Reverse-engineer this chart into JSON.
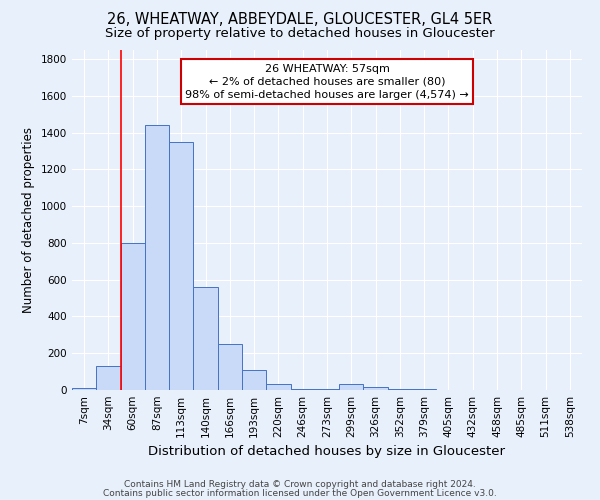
{
  "title1": "26, WHEATWAY, ABBEYDALE, GLOUCESTER, GL4 5ER",
  "title2": "Size of property relative to detached houses in Gloucester",
  "xlabel": "Distribution of detached houses by size in Gloucester",
  "ylabel": "Number of detached properties",
  "categories": [
    "7sqm",
    "34sqm",
    "60sqm",
    "87sqm",
    "113sqm",
    "140sqm",
    "166sqm",
    "193sqm",
    "220sqm",
    "246sqm",
    "273sqm",
    "299sqm",
    "326sqm",
    "352sqm",
    "379sqm",
    "405sqm",
    "432sqm",
    "458sqm",
    "485sqm",
    "511sqm",
    "538sqm"
  ],
  "values": [
    10,
    130,
    800,
    1440,
    1350,
    560,
    250,
    110,
    35,
    5,
    5,
    30,
    15,
    5,
    5,
    0,
    0,
    0,
    0,
    0,
    0
  ],
  "bar_color": "#c9daf8",
  "bar_edge_color": "#4472c4",
  "background_color": "#e8f0fb",
  "grid_color": "#ffffff",
  "red_line_x": 1.5,
  "annotation_text": "26 WHEATWAY: 57sqm\n← 2% of detached houses are smaller (80)\n98% of semi-detached houses are larger (4,574) →",
  "annotation_box_color": "#ffffff",
  "annotation_box_edge": "#cc0000",
  "ylim": [
    0,
    1850
  ],
  "yticks": [
    0,
    200,
    400,
    600,
    800,
    1000,
    1200,
    1400,
    1600,
    1800
  ],
  "footer1": "Contains HM Land Registry data © Crown copyright and database right 2024.",
  "footer2": "Contains public sector information licensed under the Open Government Licence v3.0.",
  "title1_fontsize": 10.5,
  "title2_fontsize": 9.5,
  "xlabel_fontsize": 9.5,
  "ylabel_fontsize": 8.5,
  "tick_fontsize": 7.5,
  "annotation_fontsize": 8,
  "footer_fontsize": 6.5
}
